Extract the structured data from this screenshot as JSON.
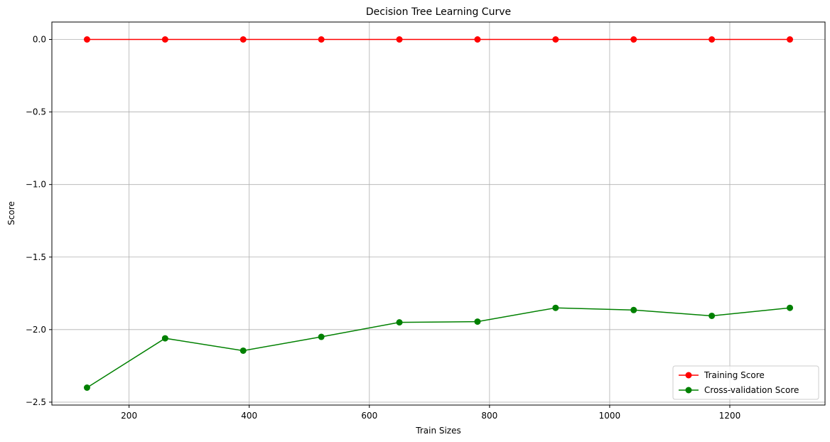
{
  "chart_data": {
    "type": "line",
    "title": "Decision Tree Learning Curve",
    "xlabel": "Train Sizes",
    "ylabel": "Score",
    "x": [
      130,
      260,
      390,
      520,
      650,
      780,
      910,
      1040,
      1170,
      1300
    ],
    "series": [
      {
        "name": "Training Score",
        "color": "#ff0000",
        "marker": "circle",
        "values": [
          0.0,
          0.0,
          0.0,
          0.0,
          0.0,
          0.0,
          0.0,
          0.0,
          0.0,
          0.0
        ]
      },
      {
        "name": "Cross-validation Score",
        "color": "#008000",
        "marker": "circle",
        "values": [
          -2.4,
          -2.06,
          -2.145,
          -2.05,
          -1.95,
          -1.945,
          -1.85,
          -1.865,
          -1.905,
          -1.85
        ]
      }
    ],
    "xlim": [
      71.5,
      1358.5
    ],
    "ylim": [
      -2.52,
      0.12
    ],
    "xticks": [
      200,
      400,
      600,
      800,
      1000,
      1200
    ],
    "xtick_labels": [
      "200",
      "400",
      "600",
      "800",
      "1000",
      "1200"
    ],
    "yticks": [
      0.0,
      -0.5,
      -1.0,
      -1.5,
      -2.0,
      -2.5
    ],
    "ytick_labels": [
      "0.0",
      "−0.5",
      "−1.0",
      "−1.5",
      "−2.0",
      "−2.5"
    ],
    "grid": true,
    "legend_position": "lower-right"
  }
}
